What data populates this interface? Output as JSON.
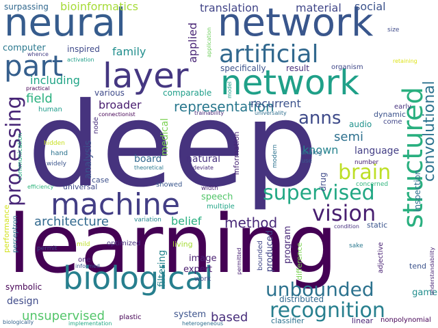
{
  "words": [
    {
      "text": "deep",
      "color": "#46337e"
    },
    {
      "text": "learning",
      "color": "#440154"
    },
    {
      "text": "neural",
      "color": "#365c8d"
    },
    {
      "text": "network",
      "color": "#39568c"
    },
    {
      "text": "network",
      "color": "#1fa088"
    },
    {
      "text": "layer",
      "color": "#453781"
    },
    {
      "text": "machine",
      "color": "#433e85"
    },
    {
      "text": "biological",
      "color": "#277f8e"
    },
    {
      "text": "artificial",
      "color": "#31688e"
    },
    {
      "text": "part",
      "color": "#355f8d"
    },
    {
      "text": "structured",
      "color": "#29af7f"
    },
    {
      "text": "supervised",
      "color": "#22a884"
    },
    {
      "text": "processing",
      "color": "#482677"
    },
    {
      "text": "recognition",
      "color": "#277f8e"
    },
    {
      "text": "unbounded",
      "color": "#2c728e"
    },
    {
      "text": "vision",
      "color": "#481f70"
    },
    {
      "text": "brain",
      "color": "#bddf26"
    },
    {
      "text": "anns",
      "color": "#3e4a89"
    },
    {
      "text": "convolutional",
      "color": "#2c728e"
    },
    {
      "text": "representation",
      "color": "#2a788e"
    },
    {
      "text": "method",
      "color": "#482878"
    },
    {
      "text": "architecture",
      "color": "#31688e"
    },
    {
      "text": "unsupervised",
      "color": "#52c569"
    },
    {
      "text": "based",
      "color": "#472d7b"
    },
    {
      "text": "translation",
      "color": "#414487"
    },
    {
      "text": "material",
      "color": "#404688"
    },
    {
      "text": "social",
      "color": "#3b528b"
    },
    {
      "text": "bioinformatics",
      "color": "#a5db36"
    },
    {
      "text": "surpassing",
      "color": "#31688e"
    },
    {
      "text": "computer",
      "color": "#2a788e"
    },
    {
      "text": "inspired",
      "color": "#3e4989"
    },
    {
      "text": "family",
      "color": "#218e8d"
    },
    {
      "text": "applied",
      "color": "#482475"
    },
    {
      "text": "result",
      "color": "#472c7a"
    },
    {
      "text": "organism",
      "color": "#3f4788"
    },
    {
      "text": "specifically",
      "color": "#3b528b"
    },
    {
      "text": "including",
      "color": "#20a486"
    },
    {
      "text": "field",
      "color": "#2ab07f"
    },
    {
      "text": "various",
      "color": "#3e4a89"
    },
    {
      "text": "comparable",
      "color": "#1f9e89"
    },
    {
      "text": "broader",
      "color": "#481c6e"
    },
    {
      "text": "recurrent",
      "color": "#3b528b"
    },
    {
      "text": "semi",
      "color": "#2d708e"
    },
    {
      "text": "known",
      "color": "#25838e"
    },
    {
      "text": "language",
      "color": "#433e85"
    },
    {
      "text": "audio",
      "color": "#20928c"
    },
    {
      "text": "dynamic",
      "color": "#3b528b"
    },
    {
      "text": "come",
      "color": "#404688"
    },
    {
      "text": "early",
      "color": "#46327e"
    },
    {
      "text": "function",
      "color": "#6ccd5a"
    },
    {
      "text": "human",
      "color": "#1e9b8a"
    },
    {
      "text": "medical",
      "color": "#7ad151"
    },
    {
      "text": "analysis",
      "color": "#3b528b"
    },
    {
      "text": "node",
      "color": "#472d7b"
    },
    {
      "text": "board",
      "color": "#31688e"
    },
    {
      "text": "natural",
      "color": "#46307e"
    },
    {
      "text": "information",
      "color": "#482576"
    },
    {
      "text": "drug",
      "color": "#3e4a89"
    },
    {
      "text": "analog",
      "color": "#2e6e8e"
    },
    {
      "text": "use",
      "color": "#38598c"
    },
    {
      "text": "number",
      "color": "#482173"
    },
    {
      "text": "modern",
      "color": "#2c728e"
    },
    {
      "text": "inspection",
      "color": "#2e6f8e"
    },
    {
      "text": "concerned",
      "color": "#2fb47c"
    },
    {
      "text": "hand",
      "color": "#2c728e"
    },
    {
      "text": "widely",
      "color": "#3a548c"
    },
    {
      "text": "hidden",
      "color": "#c8e020"
    },
    {
      "text": "communication",
      "color": "#26ad81"
    },
    {
      "text": "efficiency",
      "color": "#2fb47c"
    },
    {
      "text": "universal",
      "color": "#3e4a89"
    },
    {
      "text": "case",
      "color": "#3c4f8a"
    },
    {
      "text": "showed",
      "color": "#39568c"
    },
    {
      "text": "width",
      "color": "#482475"
    },
    {
      "text": "speech",
      "color": "#52c569"
    },
    {
      "text": "multiple",
      "color": "#20a486"
    },
    {
      "text": "belief",
      "color": "#29af7f"
    },
    {
      "text": "variation",
      "color": "#25848e"
    },
    {
      "text": "program",
      "color": "#482878"
    },
    {
      "text": "produced",
      "color": "#414487"
    },
    {
      "text": "bounded",
      "color": "#404688"
    },
    {
      "text": "difference",
      "color": "#7ad151"
    },
    {
      "text": "static",
      "color": "#3a548c"
    },
    {
      "text": "condition",
      "color": "#46307e"
    },
    {
      "text": "sake",
      "color": "#2a788e"
    },
    {
      "text": "adjective",
      "color": "#482173"
    },
    {
      "text": "tend",
      "color": "#3b528b"
    },
    {
      "text": "game",
      "color": "#218e8d"
    },
    {
      "text": "understandability",
      "color": "#482475"
    },
    {
      "text": "performance",
      "color": "#d2e21b"
    },
    {
      "text": "perceptron",
      "color": "#2c728e"
    },
    {
      "text": "permit",
      "color": "#3e4a89"
    },
    {
      "text": "mild",
      "color": "#bddf26"
    },
    {
      "text": "one",
      "color": "#482878"
    },
    {
      "text": "informed",
      "color": "#3a548c"
    },
    {
      "text": "optimized",
      "color": "#46327e"
    },
    {
      "text": "living",
      "color": "#a5db36"
    },
    {
      "text": "permitted",
      "color": "#482173"
    },
    {
      "text": "image",
      "color": "#481f70"
    },
    {
      "text": "expert",
      "color": "#481c6e"
    },
    {
      "text": "work",
      "color": "#3e4a89"
    },
    {
      "text": "filtering",
      "color": "#25848e"
    },
    {
      "text": "symbolic",
      "color": "#440154"
    },
    {
      "text": "design",
      "color": "#3e4a89"
    },
    {
      "text": "system",
      "color": "#3b528b"
    },
    {
      "text": "plastic",
      "color": "#440154"
    },
    {
      "text": "distributed",
      "color": "#31688e"
    },
    {
      "text": "classifier",
      "color": "#2c728e"
    },
    {
      "text": "linear",
      "color": "#482173"
    },
    {
      "text": "nonpolynomial",
      "color": "#440154"
    },
    {
      "text": "biologically",
      "color": "#33638d"
    },
    {
      "text": "implementation",
      "color": "#22a884"
    },
    {
      "text": "heterogeneous",
      "color": "#2e6e8e"
    },
    {
      "text": "practical",
      "color": "#440154"
    },
    {
      "text": "whence",
      "color": "#433e85"
    },
    {
      "text": "activation",
      "color": "#1f9e89"
    },
    {
      "text": "application",
      "color": "#6ccd5a"
    },
    {
      "text": "size",
      "color": "#3e4a89"
    },
    {
      "text": "retaining",
      "color": "#dde318"
    },
    {
      "text": "universality",
      "color": "#2e6e8e"
    },
    {
      "text": "trainability",
      "color": "#482878"
    },
    {
      "text": "connectionist",
      "color": "#440154"
    },
    {
      "text": "theoretical",
      "color": "#2a788e"
    },
    {
      "text": "deviate",
      "color": "#472d7b"
    },
    {
      "text": "model",
      "color": "#1f9e89"
    }
  ]
}
